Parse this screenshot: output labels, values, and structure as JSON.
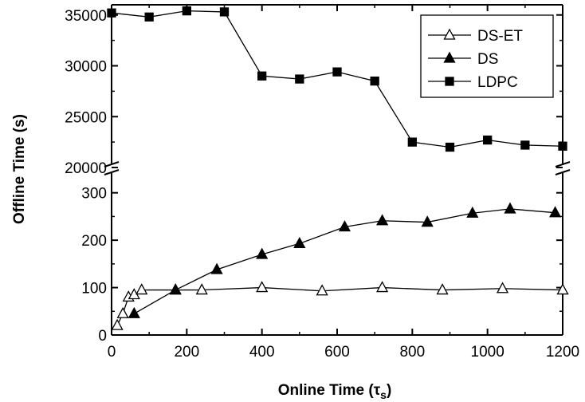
{
  "chart_data": {
    "type": "line",
    "xlabel": "Online Time (τ",
    "xlabel_sub": "s",
    "xlabel_close": ")",
    "ylabel": "Offline Time (s)",
    "xlim": [
      0,
      1200
    ],
    "x_ticks": [
      0,
      200,
      400,
      600,
      800,
      1000,
      1200
    ],
    "y_axis_break": true,
    "lower_panel": {
      "ylim": [
        0,
        350
      ],
      "y_ticks": [
        0,
        100,
        200,
        300
      ]
    },
    "upper_panel": {
      "ylim": [
        20000,
        36000
      ],
      "y_ticks": [
        20000,
        25000,
        30000,
        35000
      ]
    },
    "grid": false,
    "legend_position": "top-right",
    "series": [
      {
        "name": "DS-ET",
        "marker": "open-triangle",
        "color": "#000000",
        "x": [
          15,
          30,
          45,
          60,
          80,
          170,
          240,
          400,
          560,
          720,
          880,
          1040,
          1200
        ],
        "y": [
          20,
          45,
          80,
          85,
          95,
          95,
          95,
          100,
          93,
          100,
          95,
          98,
          95
        ]
      },
      {
        "name": "DS",
        "marker": "filled-triangle",
        "color": "#000000",
        "x": [
          60,
          170,
          280,
          400,
          500,
          620,
          720,
          840,
          960,
          1060,
          1180
        ],
        "y": [
          45,
          95,
          138,
          170,
          193,
          228,
          241,
          238,
          257,
          266,
          258
        ]
      },
      {
        "name": "LDPC",
        "marker": "filled-square",
        "color": "#000000",
        "x": [
          0,
          100,
          200,
          300,
          400,
          500,
          600,
          700,
          800,
          900,
          1000,
          1100,
          1200
        ],
        "y": [
          35200,
          34800,
          35400,
          35300,
          29000,
          28700,
          29400,
          28500,
          22500,
          22000,
          22700,
          22200,
          22100
        ]
      }
    ]
  }
}
